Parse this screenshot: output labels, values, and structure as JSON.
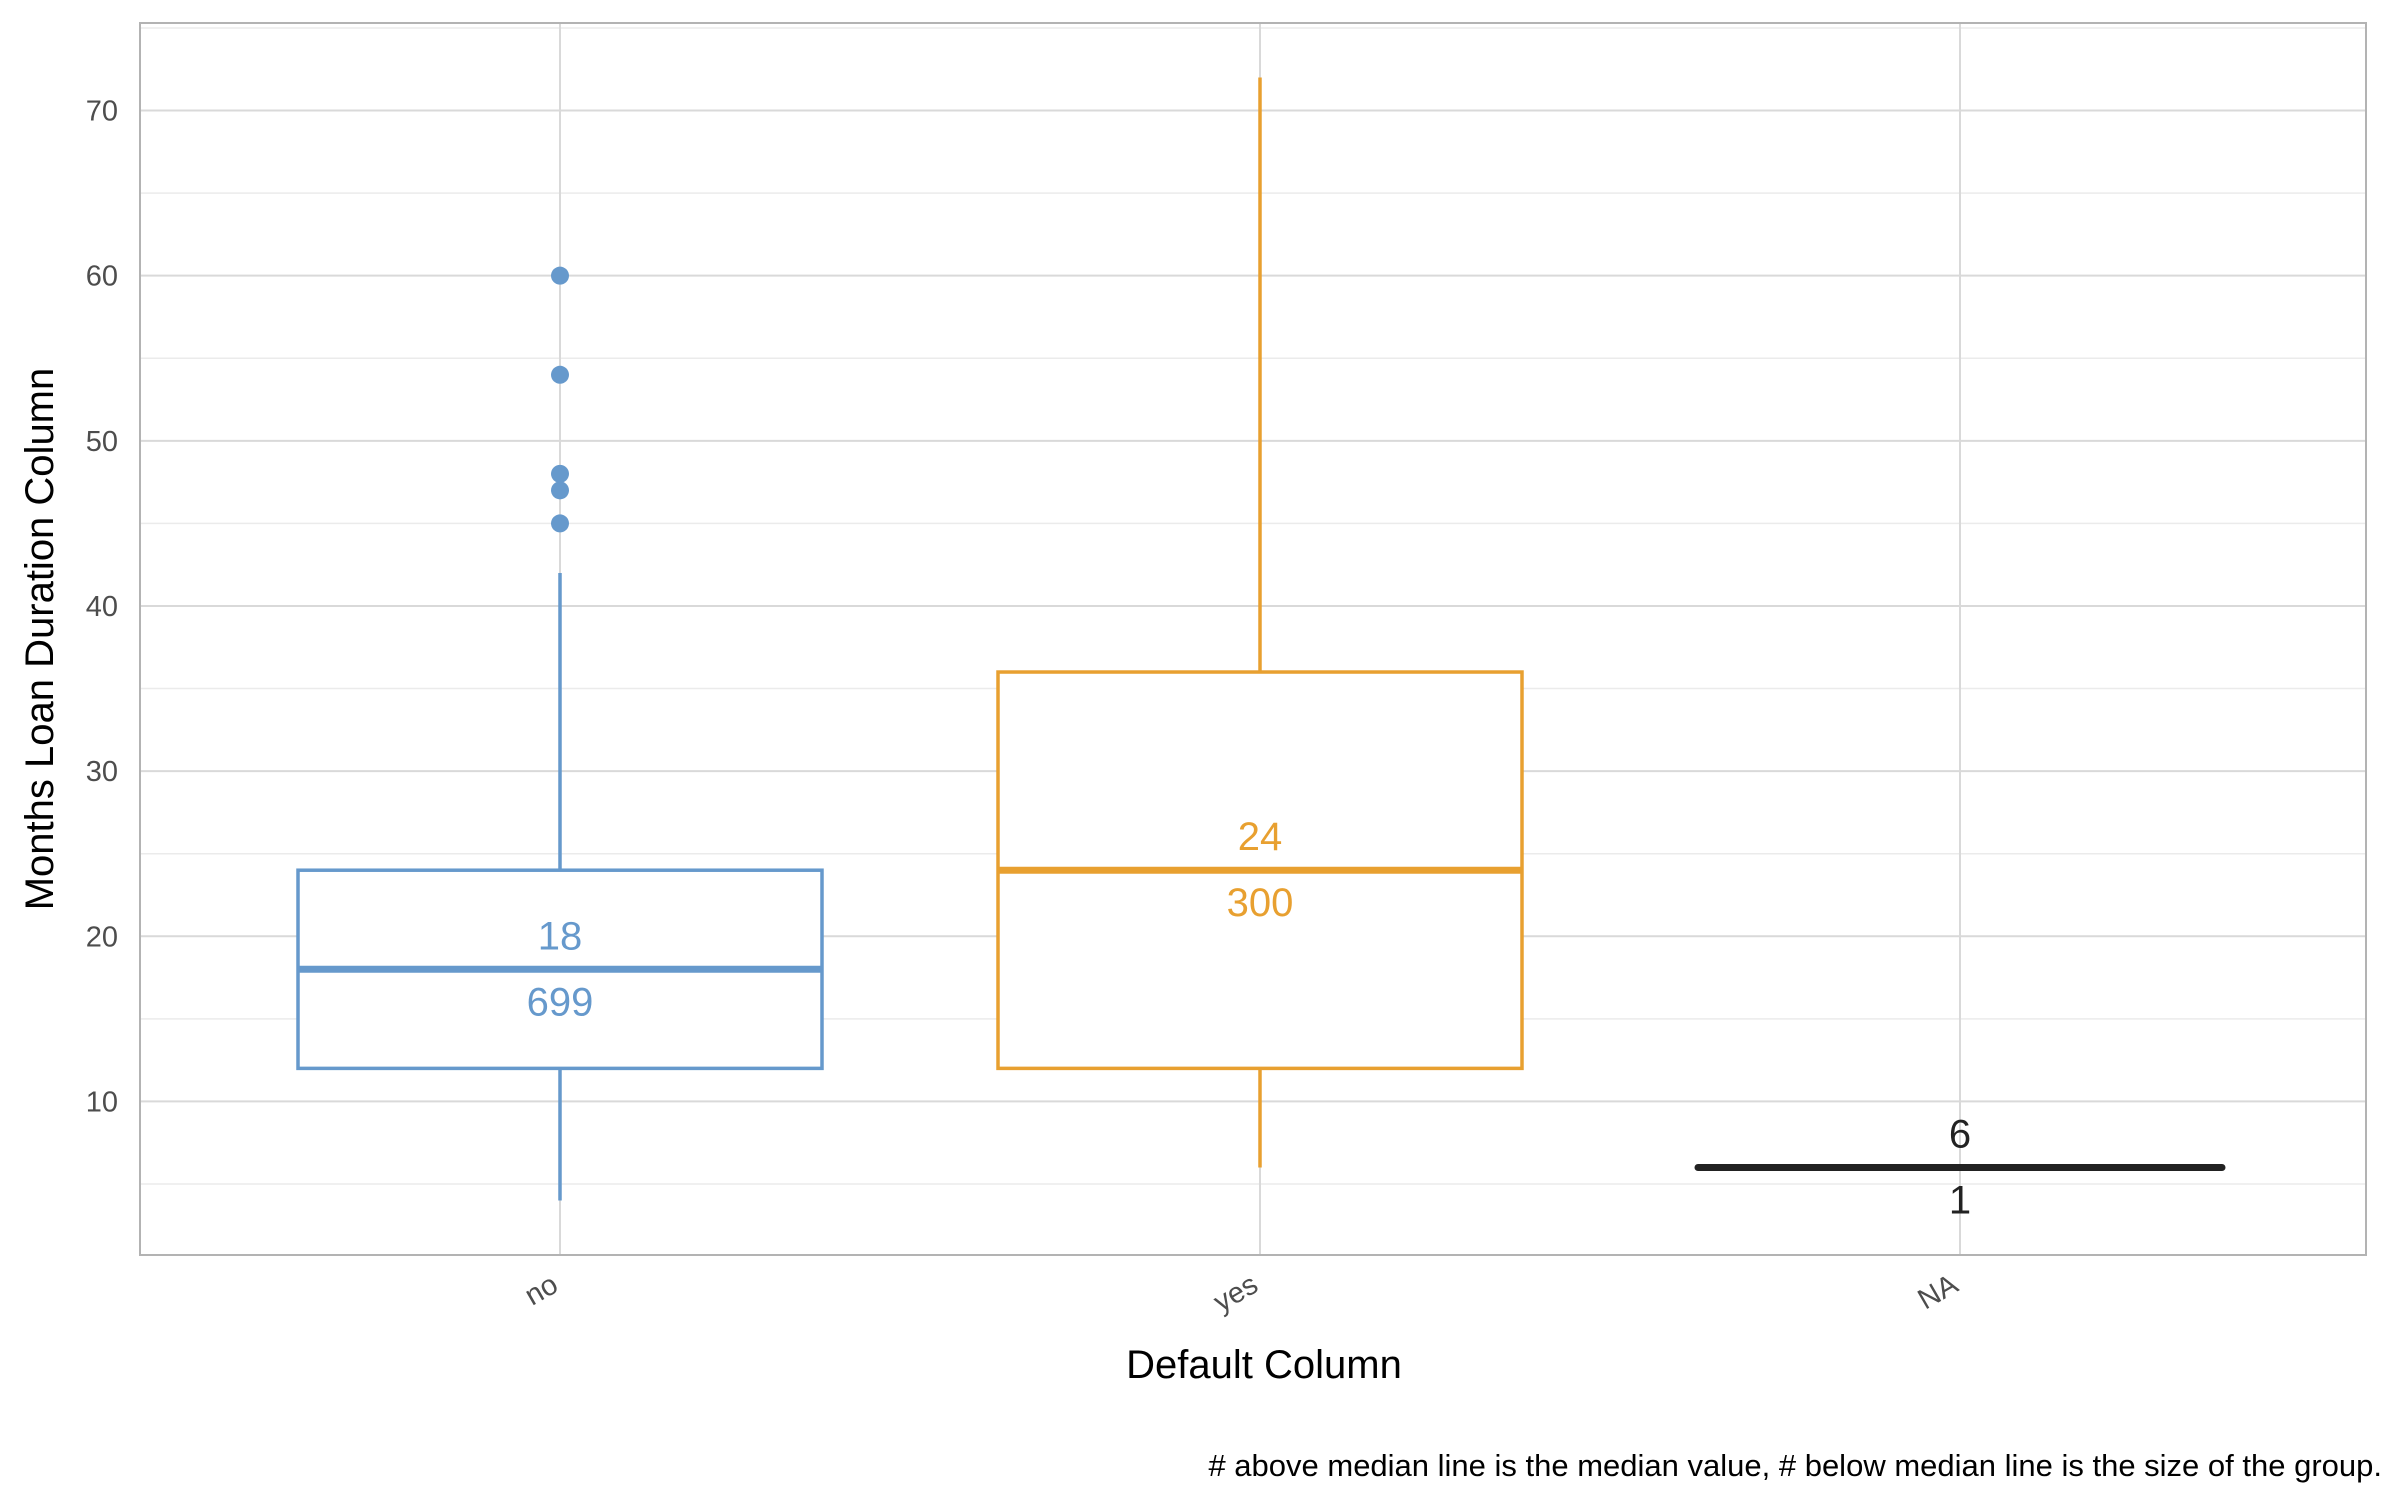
{
  "chart_data": {
    "type": "boxplot",
    "title": "",
    "xlabel": "Default Column",
    "ylabel": "Months Loan Duration Column",
    "caption": "# above median line is the median value, # below median line is the size of the group.",
    "ylim": [
      0.7,
      75.3
    ],
    "yticks": [
      10,
      20,
      30,
      40,
      50,
      60,
      70
    ],
    "grid": true,
    "legend": "none",
    "categories": [
      "no",
      "yes",
      "NA"
    ],
    "groups": [
      {
        "category": "no",
        "color": "#6699cc",
        "whisker_low": 4,
        "q1": 12,
        "median": 18,
        "q3": 24,
        "whisker_high": 42,
        "outliers": [
          45,
          47,
          48,
          54,
          60
        ],
        "median_label": "18",
        "count_label": "699"
      },
      {
        "category": "yes",
        "color": "#e8a030",
        "whisker_low": 6,
        "q1": 12,
        "median": 24,
        "q3": 36,
        "whisker_high": 72,
        "outliers": [],
        "median_label": "24",
        "count_label": "300"
      },
      {
        "category": "NA",
        "color": "#222222",
        "whisker_low": 6,
        "q1": 6,
        "median": 6,
        "q3": 6,
        "whisker_high": 6,
        "outliers": [],
        "median_label": "6",
        "count_label": "1"
      }
    ]
  }
}
